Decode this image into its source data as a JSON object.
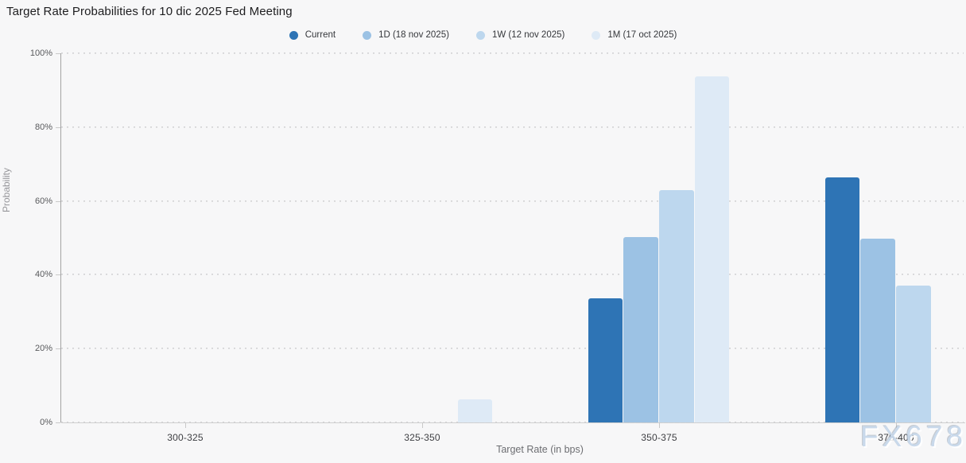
{
  "page": {
    "title": "Target Rate Probabilities for 10 dic 2025 Fed Meeting",
    "watermark": "FX678"
  },
  "colors": {
    "background": "#f7f7f8",
    "current": "#2e74b5",
    "one_day": "#9cc2e4",
    "one_week": "#bdd7ee",
    "one_month": "#deeaf6",
    "gridline": "#d2d2d4",
    "axis_line": "#a3a3a3"
  },
  "chart_data": {
    "type": "bar",
    "title": "Target Rate Probabilities for 10 dic 2025 Fed Meeting",
    "categories": [
      "300-325",
      "325-350",
      "350-375",
      "375-400"
    ],
    "xlabel": "Target Rate (in bps)",
    "ylabel": "Probability",
    "ylim": [
      0,
      100
    ],
    "ytick_values": [
      0,
      20,
      40,
      60,
      80,
      100
    ],
    "ytick_labels": [
      "0%",
      "20%",
      "40%",
      "60%",
      "80%",
      "100%"
    ],
    "grid": "horizontal dotted",
    "legend_position": "top-center",
    "series": [
      {
        "name": "Current",
        "color": "#2e74b5",
        "values": [
          0,
          0,
          33.6,
          66.4
        ]
      },
      {
        "name": "1D (18 nov 2025)",
        "color": "#9cc2e4",
        "values": [
          0,
          0,
          50.2,
          49.8
        ]
      },
      {
        "name": "1W (12 nov 2025)",
        "color": "#bdd7ee",
        "values": [
          0,
          0,
          62.9,
          37.1
        ]
      },
      {
        "name": "1M (17 oct 2025)",
        "color": "#deeaf6",
        "values": [
          0,
          6.3,
          93.7,
          0
        ]
      }
    ]
  }
}
